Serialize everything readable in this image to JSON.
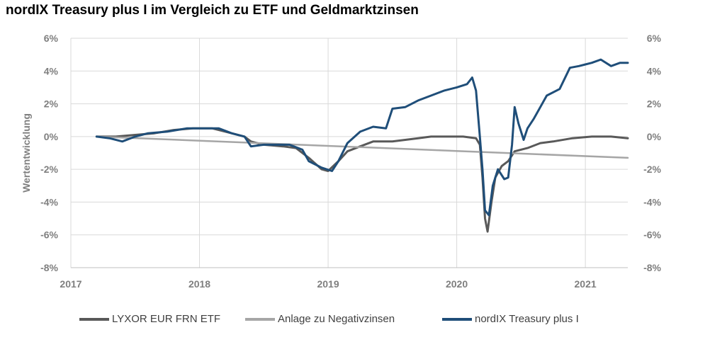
{
  "chart_data": {
    "type": "line",
    "title": "nordIX Treasury plus I im Vergleich zu ETF und Geldmarktzinsen",
    "ylabel": "Wertentwicklung",
    "xlabel": "",
    "xlim": [
      2017.0,
      2021.33
    ],
    "ylim": [
      -8,
      6
    ],
    "x_ticks": [
      "2017",
      "2018",
      "2019",
      "2020",
      "2021"
    ],
    "y_ticks": [
      "6%",
      "4%",
      "2%",
      "0%",
      "-2%",
      "-4%",
      "-6%",
      "-8%"
    ],
    "grid": true,
    "legend_position": "bottom",
    "series": [
      {
        "name": "LYXOR EUR FRN ETF",
        "color": "#595959",
        "points": [
          [
            2017.2,
            0.0
          ],
          [
            2017.35,
            0.0
          ],
          [
            2017.5,
            0.1
          ],
          [
            2017.65,
            0.2
          ],
          [
            2017.8,
            0.4
          ],
          [
            2017.95,
            0.5
          ],
          [
            2018.1,
            0.5
          ],
          [
            2018.25,
            0.2
          ],
          [
            2018.35,
            0.0
          ],
          [
            2018.4,
            -0.3
          ],
          [
            2018.5,
            -0.5
          ],
          [
            2018.65,
            -0.6
          ],
          [
            2018.75,
            -0.7
          ],
          [
            2018.85,
            -1.3
          ],
          [
            2018.95,
            -2.0
          ],
          [
            2019.0,
            -2.1
          ],
          [
            2019.08,
            -1.5
          ],
          [
            2019.15,
            -0.9
          ],
          [
            2019.25,
            -0.6
          ],
          [
            2019.35,
            -0.3
          ],
          [
            2019.5,
            -0.3
          ],
          [
            2019.6,
            -0.2
          ],
          [
            2019.7,
            -0.1
          ],
          [
            2019.8,
            0.0
          ],
          [
            2019.95,
            0.0
          ],
          [
            2020.05,
            0.0
          ],
          [
            2020.15,
            -0.1
          ],
          [
            2020.18,
            -0.5
          ],
          [
            2020.2,
            -2.5
          ],
          [
            2020.22,
            -5.0
          ],
          [
            2020.24,
            -5.8
          ],
          [
            2020.27,
            -4.0
          ],
          [
            2020.3,
            -2.5
          ],
          [
            2020.35,
            -1.8
          ],
          [
            2020.4,
            -1.5
          ],
          [
            2020.45,
            -0.9
          ],
          [
            2020.55,
            -0.7
          ],
          [
            2020.65,
            -0.4
          ],
          [
            2020.75,
            -0.3
          ],
          [
            2020.9,
            -0.1
          ],
          [
            2021.05,
            0.0
          ],
          [
            2021.2,
            0.0
          ],
          [
            2021.33,
            -0.1
          ]
        ]
      },
      {
        "name": "Anlage zu Negativzinsen",
        "color": "#a6a6a6",
        "points": [
          [
            2017.2,
            0.0
          ],
          [
            2021.33,
            -1.3
          ]
        ]
      },
      {
        "name": "nordIX Treasury plus I",
        "color": "#1f4e79",
        "points": [
          [
            2017.2,
            0.0
          ],
          [
            2017.3,
            -0.1
          ],
          [
            2017.4,
            -0.3
          ],
          [
            2017.5,
            0.0
          ],
          [
            2017.6,
            0.2
          ],
          [
            2017.75,
            0.3
          ],
          [
            2017.9,
            0.5
          ],
          [
            2018.05,
            0.5
          ],
          [
            2018.15,
            0.5
          ],
          [
            2018.25,
            0.2
          ],
          [
            2018.35,
            0.0
          ],
          [
            2018.4,
            -0.6
          ],
          [
            2018.5,
            -0.5
          ],
          [
            2018.6,
            -0.5
          ],
          [
            2018.7,
            -0.5
          ],
          [
            2018.8,
            -0.8
          ],
          [
            2018.85,
            -1.5
          ],
          [
            2018.95,
            -1.9
          ],
          [
            2019.03,
            -2.1
          ],
          [
            2019.08,
            -1.5
          ],
          [
            2019.15,
            -0.4
          ],
          [
            2019.25,
            0.3
          ],
          [
            2019.35,
            0.6
          ],
          [
            2019.45,
            0.5
          ],
          [
            2019.5,
            1.7
          ],
          [
            2019.6,
            1.8
          ],
          [
            2019.7,
            2.2
          ],
          [
            2019.8,
            2.5
          ],
          [
            2019.9,
            2.8
          ],
          [
            2020.0,
            3.0
          ],
          [
            2020.08,
            3.2
          ],
          [
            2020.12,
            3.6
          ],
          [
            2020.15,
            2.8
          ],
          [
            2020.18,
            0.0
          ],
          [
            2020.2,
            -2.0
          ],
          [
            2020.22,
            -4.5
          ],
          [
            2020.25,
            -4.8
          ],
          [
            2020.28,
            -3.0
          ],
          [
            2020.32,
            -2.0
          ],
          [
            2020.37,
            -2.6
          ],
          [
            2020.4,
            -2.5
          ],
          [
            2020.43,
            -0.5
          ],
          [
            2020.45,
            1.8
          ],
          [
            2020.48,
            0.8
          ],
          [
            2020.52,
            -0.2
          ],
          [
            2020.55,
            0.5
          ],
          [
            2020.6,
            1.1
          ],
          [
            2020.7,
            2.5
          ],
          [
            2020.8,
            2.9
          ],
          [
            2020.88,
            4.2
          ],
          [
            2020.95,
            4.3
          ],
          [
            2021.0,
            4.4
          ],
          [
            2021.05,
            4.5
          ],
          [
            2021.12,
            4.7
          ],
          [
            2021.2,
            4.3
          ],
          [
            2021.27,
            4.5
          ],
          [
            2021.33,
            4.5
          ]
        ]
      }
    ]
  }
}
